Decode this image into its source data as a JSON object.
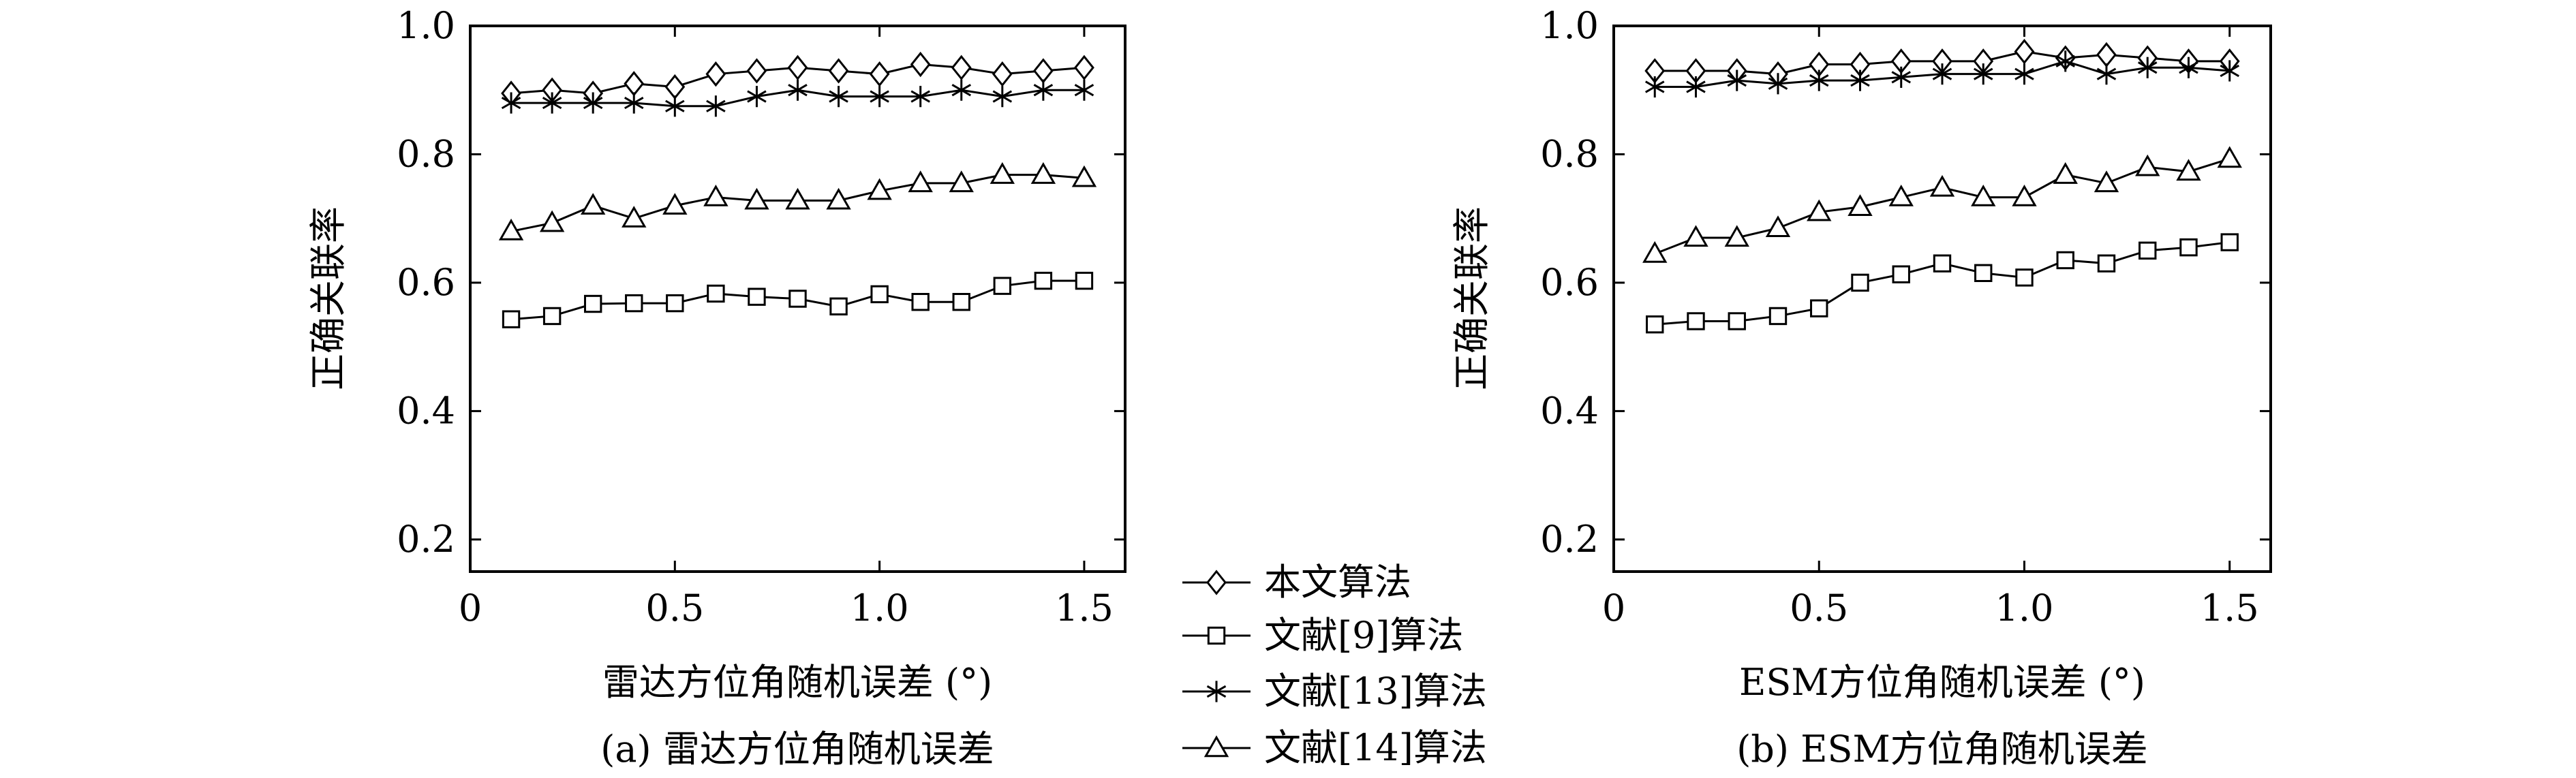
{
  "chart_data": [
    {
      "type": "line",
      "xlabel": "雷达方位角随机误差 (°)",
      "ylabel": "正确关联率",
      "caption": "(a) 雷达方位角随机误差",
      "xlim": [
        0,
        1.6
      ],
      "ylim": [
        0.15,
        1.0
      ],
      "xticks": [
        0,
        0.5,
        1.0,
        1.5
      ],
      "xtick_labels": [
        "0",
        "0.5",
        "1.0",
        "1.5"
      ],
      "yticks": [
        0.2,
        0.4,
        0.6,
        0.8,
        1.0
      ],
      "ytick_labels": [
        "0.2",
        "0.4",
        "0.6",
        "0.8",
        "1.0"
      ],
      "grid": false,
      "x": [
        0.1,
        0.2,
        0.3,
        0.4,
        0.5,
        0.6,
        0.7,
        0.8,
        0.9,
        1.0,
        1.1,
        1.2,
        1.3,
        1.4,
        1.5
      ],
      "series": [
        {
          "name": "本文算法",
          "marker": "diamond",
          "values": [
            0.895,
            0.9,
            0.895,
            0.91,
            0.905,
            0.925,
            0.93,
            0.935,
            0.93,
            0.925,
            0.94,
            0.935,
            0.925,
            0.93,
            0.935
          ]
        },
        {
          "name": "文献[9]算法",
          "marker": "square",
          "values": [
            0.543,
            0.548,
            0.567,
            0.568,
            0.568,
            0.583,
            0.578,
            0.575,
            0.563,
            0.582,
            0.57,
            0.57,
            0.595,
            0.603,
            0.603
          ]
        },
        {
          "name": "文献[13]算法",
          "marker": "star",
          "values": [
            0.88,
            0.88,
            0.88,
            0.88,
            0.875,
            0.875,
            0.89,
            0.9,
            0.89,
            0.89,
            0.89,
            0.9,
            0.89,
            0.9,
            0.9
          ]
        },
        {
          "name": "文献[14]算法",
          "marker": "triangle",
          "values": [
            0.68,
            0.693,
            0.72,
            0.7,
            0.72,
            0.733,
            0.728,
            0.728,
            0.728,
            0.743,
            0.755,
            0.755,
            0.768,
            0.768,
            0.763
          ]
        }
      ]
    },
    {
      "type": "line",
      "xlabel": "ESM方位角随机误差 (°)",
      "ylabel": "正确关联率",
      "caption": "(b) ESM方位角随机误差",
      "xlim": [
        0,
        1.6
      ],
      "ylim": [
        0.15,
        1.0
      ],
      "xticks": [
        0,
        0.5,
        1.0,
        1.5
      ],
      "xtick_labels": [
        "0",
        "0.5",
        "1.0",
        "1.5"
      ],
      "yticks": [
        0.2,
        0.4,
        0.6,
        0.8,
        1.0
      ],
      "ytick_labels": [
        "0.2",
        "0.4",
        "0.6",
        "0.8",
        "1.0"
      ],
      "grid": false,
      "x": [
        0.1,
        0.2,
        0.3,
        0.4,
        0.5,
        0.6,
        0.7,
        0.8,
        0.9,
        1.0,
        1.1,
        1.2,
        1.3,
        1.4,
        1.5
      ],
      "series": [
        {
          "name": "本文算法",
          "marker": "diamond",
          "values": [
            0.93,
            0.93,
            0.93,
            0.925,
            0.94,
            0.94,
            0.945,
            0.945,
            0.945,
            0.96,
            0.95,
            0.955,
            0.95,
            0.945,
            0.945
          ]
        },
        {
          "name": "文献[9]算法",
          "marker": "square",
          "values": [
            0.535,
            0.54,
            0.54,
            0.548,
            0.56,
            0.6,
            0.613,
            0.63,
            0.615,
            0.608,
            0.635,
            0.63,
            0.65,
            0.655,
            0.663
          ]
        },
        {
          "name": "文献[13]算法",
          "marker": "star",
          "values": [
            0.905,
            0.905,
            0.915,
            0.91,
            0.915,
            0.915,
            0.92,
            0.925,
            0.925,
            0.925,
            0.945,
            0.925,
            0.935,
            0.935,
            0.93
          ]
        },
        {
          "name": "文献[14]算法",
          "marker": "triangle",
          "values": [
            0.645,
            0.67,
            0.67,
            0.685,
            0.71,
            0.718,
            0.733,
            0.748,
            0.733,
            0.733,
            0.768,
            0.755,
            0.78,
            0.773,
            0.793
          ]
        }
      ]
    }
  ],
  "legend": {
    "placement": "bottom-center",
    "items": [
      "本文算法",
      "文献[9]算法",
      "文献[13]算法",
      "文献[14]算法"
    ]
  }
}
